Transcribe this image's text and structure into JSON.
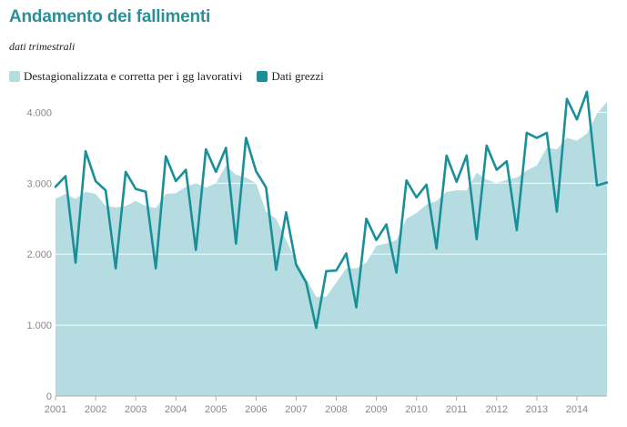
{
  "chart_data": {
    "type": "area",
    "title": "Andamento dei fallimenti",
    "subtitle": "dati trimestrali",
    "xlabel": "",
    "ylabel": "",
    "ylim": [
      0,
      4300
    ],
    "xlim": [
      2001.0,
      2014.75
    ],
    "yticks": [
      0,
      1000,
      2000,
      3000,
      4000
    ],
    "ytick_labels": [
      "0",
      "1.000",
      "2.000",
      "3.000",
      "4.000"
    ],
    "xticks": [
      2001,
      2002,
      2003,
      2004,
      2005,
      2006,
      2007,
      2008,
      2009,
      2010,
      2011,
      2012,
      2013,
      2014
    ],
    "xtick_labels": [
      "2001",
      "2002",
      "2003",
      "2004",
      "2005",
      "2006",
      "2007",
      "2008",
      "2009",
      "2010",
      "2011",
      "2012",
      "2013",
      "2014"
    ],
    "grid": true,
    "legend_position": "top-left",
    "x": [
      2001.0,
      2001.25,
      2001.5,
      2001.75,
      2002.0,
      2002.25,
      2002.5,
      2002.75,
      2003.0,
      2003.25,
      2003.5,
      2003.75,
      2004.0,
      2004.25,
      2004.5,
      2004.75,
      2005.0,
      2005.25,
      2005.5,
      2005.75,
      2006.0,
      2006.25,
      2006.5,
      2006.75,
      2007.0,
      2007.25,
      2007.5,
      2007.75,
      2008.0,
      2008.25,
      2008.5,
      2008.75,
      2009.0,
      2009.25,
      2009.5,
      2009.75,
      2010.0,
      2010.25,
      2010.5,
      2010.75,
      2011.0,
      2011.25,
      2011.5,
      2011.75,
      2012.0,
      2012.25,
      2012.5,
      2012.75,
      2013.0,
      2013.25,
      2013.5,
      2013.75,
      2014.0,
      2014.25,
      2014.5,
      2014.75
    ],
    "series": [
      {
        "name": "Destagionalizzata e corretta per i gg lavorativi",
        "type": "area",
        "color": "#b5dce0",
        "values": [
          2780,
          2850,
          2780,
          2880,
          2850,
          2680,
          2660,
          2680,
          2750,
          2680,
          2650,
          2850,
          2860,
          2950,
          3000,
          2940,
          3000,
          3250,
          3120,
          3080,
          3000,
          2600,
          2500,
          2200,
          1900,
          1650,
          1400,
          1400,
          1600,
          1800,
          1800,
          1880,
          2120,
          2150,
          2200,
          2500,
          2580,
          2700,
          2750,
          2880,
          2900,
          2900,
          3150,
          3050,
          3000,
          3050,
          3080,
          3180,
          3250,
          3500,
          3480,
          3640,
          3600,
          3700,
          3980,
          4150
        ]
      },
      {
        "name": "Dati grezzi",
        "type": "line",
        "color": "#1a8f98",
        "values": [
          2950,
          3100,
          1880,
          3450,
          3030,
          2900,
          1800,
          3160,
          2920,
          2880,
          1800,
          3380,
          3030,
          3190,
          2060,
          3480,
          3160,
          3500,
          2150,
          3640,
          3170,
          2940,
          1780,
          2590,
          1850,
          1600,
          960,
          1760,
          1770,
          2010,
          1250,
          2500,
          2200,
          2420,
          1740,
          3040,
          2800,
          2980,
          2080,
          3390,
          3020,
          3390,
          2210,
          3530,
          3190,
          3310,
          2340,
          3710,
          3640,
          3710,
          2600,
          4190,
          3900,
          4290,
          2970,
          3010
        ]
      }
    ]
  }
}
